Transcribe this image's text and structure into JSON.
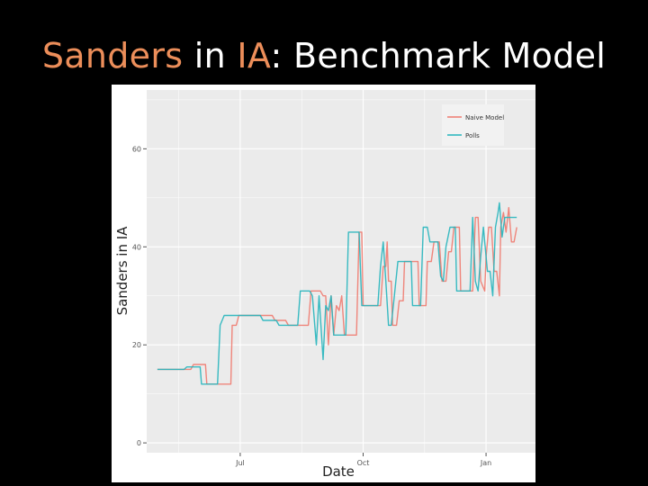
{
  "slide": {
    "title_part1": "Sanders",
    "title_part2": " in ",
    "title_part3": "IA",
    "title_part4": ": Benchmark Model",
    "highlight_color": "#ec8e5a"
  },
  "chart_data": {
    "type": "line",
    "title": "",
    "xlabel": "Date",
    "ylabel": "Sanders  in IA",
    "x_ticks": [
      "Jul",
      "Oct",
      "Jan"
    ],
    "y_ticks": [
      "0",
      "20",
      "40",
      "60"
    ],
    "ylim": [
      -2,
      72
    ],
    "xlim": [
      "2015-04-22",
      "2016-02-07"
    ],
    "grid": true,
    "legend_position": "top-right",
    "series": [
      {
        "name": "Naive Model",
        "color": "#f07a6f",
        "points": [
          [
            "2015-04-30",
            15
          ],
          [
            "2015-05-25",
            15
          ],
          [
            "2015-05-27",
            16
          ],
          [
            "2015-06-05",
            16
          ],
          [
            "2015-06-06",
            12
          ],
          [
            "2015-06-24",
            12
          ],
          [
            "2015-06-25",
            24
          ],
          [
            "2015-06-28",
            24
          ],
          [
            "2015-06-30",
            26
          ],
          [
            "2015-07-25",
            26
          ],
          [
            "2015-07-27",
            25
          ],
          [
            "2015-08-04",
            25
          ],
          [
            "2015-08-06",
            24
          ],
          [
            "2015-08-21",
            24
          ],
          [
            "2015-08-23",
            31
          ],
          [
            "2015-08-30",
            31
          ],
          [
            "2015-09-01",
            30
          ],
          [
            "2015-09-03",
            30
          ],
          [
            "2015-09-05",
            20
          ],
          [
            "2015-09-07",
            30
          ],
          [
            "2015-09-09",
            22
          ],
          [
            "2015-09-11",
            28
          ],
          [
            "2015-09-13",
            27
          ],
          [
            "2015-09-15",
            30
          ],
          [
            "2015-09-17",
            22
          ],
          [
            "2015-09-26",
            22
          ],
          [
            "2015-09-28",
            43
          ],
          [
            "2015-09-30",
            43
          ],
          [
            "2015-10-01",
            28
          ],
          [
            "2015-10-14",
            28
          ],
          [
            "2015-10-16",
            36
          ],
          [
            "2015-10-18",
            36
          ],
          [
            "2015-10-19",
            41
          ],
          [
            "2015-10-20",
            33
          ],
          [
            "2015-10-22",
            33
          ],
          [
            "2015-10-23",
            24
          ],
          [
            "2015-10-26",
            24
          ],
          [
            "2015-10-28",
            29
          ],
          [
            "2015-10-31",
            29
          ],
          [
            "2015-11-01",
            37
          ],
          [
            "2015-11-11",
            37
          ],
          [
            "2015-11-12",
            28
          ],
          [
            "2015-11-17",
            28
          ],
          [
            "2015-11-18",
            37
          ],
          [
            "2015-11-21",
            37
          ],
          [
            "2015-11-23",
            41
          ],
          [
            "2015-11-27",
            41
          ],
          [
            "2015-11-29",
            33
          ],
          [
            "2015-12-02",
            33
          ],
          [
            "2015-12-04",
            39
          ],
          [
            "2015-12-06",
            39
          ],
          [
            "2015-12-08",
            44
          ],
          [
            "2015-12-12",
            44
          ],
          [
            "2015-12-13",
            31
          ],
          [
            "2015-12-22",
            31
          ],
          [
            "2015-12-24",
            46
          ],
          [
            "2015-12-26",
            46
          ],
          [
            "2015-12-28",
            33
          ],
          [
            "2015-12-31",
            31
          ],
          [
            "2016-01-01",
            38
          ],
          [
            "2016-01-03",
            44
          ],
          [
            "2016-01-05",
            44
          ],
          [
            "2016-01-07",
            35
          ],
          [
            "2016-01-09",
            35
          ],
          [
            "2016-01-11",
            30
          ],
          [
            "2016-01-12",
            44
          ],
          [
            "2016-01-14",
            47
          ],
          [
            "2016-01-16",
            43
          ],
          [
            "2016-01-18",
            48
          ],
          [
            "2016-01-20",
            41
          ],
          [
            "2016-01-22",
            41
          ],
          [
            "2016-01-24",
            44
          ]
        ]
      },
      {
        "name": "Polls",
        "color": "#25b5bd",
        "points": [
          [
            "2015-04-30",
            15
          ],
          [
            "2015-05-20",
            15
          ],
          [
            "2015-05-22",
            15.5
          ],
          [
            "2015-06-01",
            15.5
          ],
          [
            "2015-06-02",
            12
          ],
          [
            "2015-06-14",
            12
          ],
          [
            "2015-06-16",
            24
          ],
          [
            "2015-06-19",
            26
          ],
          [
            "2015-07-16",
            26
          ],
          [
            "2015-07-18",
            25
          ],
          [
            "2015-07-28",
            25
          ],
          [
            "2015-07-30",
            24
          ],
          [
            "2015-08-13",
            24
          ],
          [
            "2015-08-15",
            31
          ],
          [
            "2015-08-22",
            31
          ],
          [
            "2015-08-24",
            30
          ],
          [
            "2015-08-27",
            20
          ],
          [
            "2015-08-29",
            30
          ],
          [
            "2015-09-01",
            17
          ],
          [
            "2015-09-03",
            28
          ],
          [
            "2015-09-05",
            27
          ],
          [
            "2015-09-07",
            30
          ],
          [
            "2015-09-09",
            22
          ],
          [
            "2015-09-18",
            22
          ],
          [
            "2015-09-20",
            43
          ],
          [
            "2015-09-28",
            43
          ],
          [
            "2015-09-30",
            28
          ],
          [
            "2015-10-12",
            28
          ],
          [
            "2015-10-14",
            36
          ],
          [
            "2015-10-16",
            41
          ],
          [
            "2015-10-18",
            33
          ],
          [
            "2015-10-20",
            24
          ],
          [
            "2015-10-22",
            24
          ],
          [
            "2015-10-24",
            29
          ],
          [
            "2015-10-27",
            37
          ],
          [
            "2015-11-06",
            37
          ],
          [
            "2015-11-07",
            28
          ],
          [
            "2015-11-13",
            28
          ],
          [
            "2015-11-15",
            44
          ],
          [
            "2015-11-18",
            44
          ],
          [
            "2015-11-20",
            41
          ],
          [
            "2015-11-26",
            41
          ],
          [
            "2015-11-28",
            34
          ],
          [
            "2015-11-30",
            33
          ],
          [
            "2015-12-02",
            40
          ],
          [
            "2015-12-05",
            44
          ],
          [
            "2015-12-09",
            44
          ],
          [
            "2015-12-10",
            31
          ],
          [
            "2015-12-20",
            31
          ],
          [
            "2015-12-22",
            46
          ],
          [
            "2015-12-24",
            33
          ],
          [
            "2015-12-26",
            31
          ],
          [
            "2015-12-28",
            38
          ],
          [
            "2015-12-30",
            44
          ],
          [
            "2016-01-02",
            35
          ],
          [
            "2016-01-04",
            35
          ],
          [
            "2016-01-06",
            30
          ],
          [
            "2016-01-08",
            44
          ],
          [
            "2016-01-10",
            47
          ],
          [
            "2016-01-11",
            49
          ],
          [
            "2016-01-13",
            42
          ],
          [
            "2016-01-15",
            46
          ],
          [
            "2016-01-24",
            46
          ]
        ]
      }
    ]
  }
}
